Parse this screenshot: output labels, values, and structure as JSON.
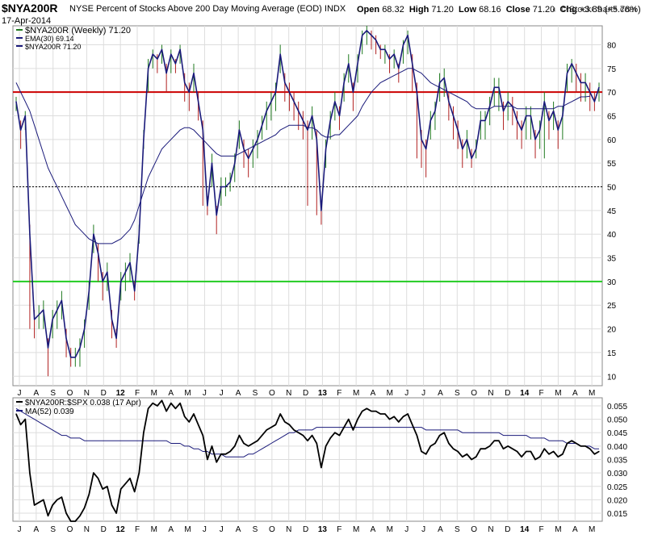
{
  "header": {
    "symbol": "$NYA200R",
    "description": "NYSE Percent of Stocks Above 200 Day Moving Average (EOD)",
    "exchange": "INDX",
    "date": "17-Apr-2014",
    "open_label": "Open",
    "open": "68.32",
    "high_label": "High",
    "high": "71.20",
    "low_label": "Low",
    "low": "68.16",
    "close_label": "Close",
    "close": "71.20",
    "chg_label": "Chg",
    "chg": "+3.89 (+5.78%)",
    "brand": "© StockCharts.com",
    "brand_icon": "chart-logo-icon"
  },
  "colors": {
    "price_line": "#1a1a7a",
    "ema_line": "#1a1a7a",
    "bar_up": "#1f7a1f",
    "bar_down": "#b02020",
    "resistance_line": "#cc0000",
    "support_line": "#22cc22",
    "ratio_line": "#000000",
    "ratio_ma": "#1a1a7a",
    "grid": "#dddddd"
  },
  "chart_data": [
    {
      "type": "line",
      "legend": [
        "$NYA200R (Weekly) 71.20",
        "EMA(30) 69.14",
        "$NYA200R 71.20"
      ],
      "xlabels": [
        "J",
        "A",
        "S",
        "O",
        "N",
        "D",
        "12",
        "F",
        "M",
        "A",
        "M",
        "J",
        "J",
        "A",
        "S",
        "O",
        "N",
        "D",
        "13",
        "F",
        "M",
        "A",
        "M",
        "J",
        "J",
        "A",
        "S",
        "O",
        "N",
        "D",
        "14",
        "F",
        "M",
        "A",
        "M"
      ],
      "ylim": [
        8,
        84
      ],
      "yticks": [
        10,
        15,
        20,
        25,
        30,
        35,
        40,
        45,
        50,
        55,
        60,
        65,
        70,
        75,
        80
      ],
      "grid": true,
      "reference_lines": [
        {
          "value": 70,
          "style": "solid",
          "color": "#cc0000"
        },
        {
          "value": 50,
          "style": "dotted",
          "color": "#000000"
        },
        {
          "value": 30,
          "style": "solid",
          "color": "#22cc22"
        }
      ],
      "series": [
        {
          "name": "$NYA200R",
          "values": [
            68,
            62,
            65,
            40,
            22,
            23,
            24,
            16,
            22,
            24,
            26,
            18,
            14,
            14,
            16,
            20,
            28,
            40,
            36,
            30,
            32,
            22,
            18,
            30,
            32,
            34,
            28,
            40,
            60,
            75,
            78,
            77,
            79,
            74,
            78,
            76,
            79,
            72,
            70,
            74,
            68,
            62,
            46,
            55,
            44,
            50,
            50,
            51,
            55,
            62,
            58,
            56,
            58,
            60,
            63,
            66,
            68,
            70,
            78,
            72,
            70,
            68,
            66,
            64,
            62,
            65,
            60,
            45,
            58,
            64,
            68,
            65,
            72,
            76,
            70,
            76,
            82,
            83,
            82,
            81,
            79,
            79,
            77,
            78,
            75,
            80,
            82,
            76,
            70,
            60,
            58,
            64,
            66,
            72,
            73,
            68,
            65,
            62,
            58,
            60,
            56,
            58,
            64,
            64,
            67,
            71,
            71,
            66,
            68,
            67,
            64,
            62,
            65,
            65,
            60,
            62,
            68,
            64,
            66,
            62,
            65,
            74,
            76,
            74,
            72,
            72,
            70,
            68,
            71
          ],
          "high": [
            69,
            64,
            66,
            42,
            24,
            25,
            26,
            18,
            24,
            26,
            28,
            20,
            16,
            16,
            18,
            22,
            30,
            42,
            38,
            32,
            34,
            24,
            20,
            32,
            34,
            36,
            30,
            42,
            62,
            77,
            79,
            78,
            80,
            76,
            79,
            77,
            80,
            74,
            72,
            76,
            70,
            64,
            48,
            57,
            46,
            52,
            52,
            53,
            57,
            64,
            60,
            58,
            60,
            62,
            65,
            68,
            70,
            72,
            80,
            74,
            72,
            70,
            68,
            66,
            64,
            67,
            62,
            47,
            60,
            66,
            70,
            67,
            74,
            78,
            72,
            78,
            83,
            84,
            83,
            82,
            80,
            80,
            78,
            79,
            76,
            81,
            83,
            78,
            72,
            62,
            60,
            66,
            68,
            74,
            75,
            70,
            67,
            64,
            60,
            62,
            58,
            60,
            66,
            66,
            69,
            73,
            73,
            68,
            70,
            69,
            66,
            64,
            67,
            67,
            62,
            64,
            70,
            66,
            68,
            64,
            67,
            76,
            77,
            76,
            74,
            74,
            72,
            70,
            72
          ],
          "low": [
            66,
            58,
            62,
            20,
            18,
            20,
            20,
            10,
            18,
            20,
            22,
            14,
            12,
            12,
            12,
            16,
            24,
            36,
            30,
            26,
            28,
            18,
            16,
            26,
            28,
            30,
            26,
            38,
            58,
            70,
            75,
            74,
            76,
            70,
            74,
            74,
            76,
            68,
            66,
            70,
            64,
            46,
            44,
            50,
            40,
            46,
            48,
            49,
            51,
            58,
            54,
            52,
            54,
            56,
            60,
            62,
            64,
            66,
            74,
            68,
            66,
            64,
            62,
            60,
            46,
            60,
            44,
            42,
            54,
            60,
            64,
            62,
            68,
            72,
            66,
            72,
            78,
            80,
            79,
            78,
            77,
            76,
            74,
            75,
            72,
            76,
            78,
            70,
            56,
            54,
            52,
            60,
            62,
            68,
            69,
            64,
            60,
            58,
            54,
            56,
            54,
            56,
            60,
            60,
            63,
            67,
            66,
            62,
            64,
            63,
            60,
            58,
            60,
            60,
            56,
            58,
            56,
            60,
            62,
            58,
            60,
            70,
            72,
            70,
            68,
            68,
            66,
            66,
            68
          ]
        },
        {
          "name": "EMA(30)",
          "values": [
            72,
            70,
            68,
            66,
            63,
            60,
            57,
            54,
            52,
            50,
            48,
            46,
            44,
            42,
            41,
            40,
            39,
            38.5,
            38,
            38,
            38,
            38,
            38.5,
            39,
            40,
            41,
            43,
            46,
            49,
            52,
            54,
            56,
            58,
            59,
            60,
            61,
            62,
            62.5,
            62.5,
            62,
            61,
            60,
            59,
            58,
            57,
            56.5,
            56.5,
            56.5,
            56.5,
            57,
            57.5,
            58,
            58.5,
            59,
            59.5,
            60,
            60.5,
            61,
            62,
            62.5,
            63,
            63,
            63,
            63,
            62.5,
            62.5,
            62,
            61,
            60.5,
            60.5,
            61,
            61,
            62,
            63,
            64,
            65,
            67,
            68.5,
            70,
            71,
            72,
            72.5,
            73,
            73.5,
            74,
            74.5,
            75,
            75,
            74.5,
            74,
            73,
            72,
            71.5,
            71,
            70.5,
            70,
            69.5,
            69,
            68.5,
            68,
            67,
            66.5,
            66.5,
            66.5,
            66.5,
            67,
            67,
            67,
            67,
            67,
            66.5,
            66.5,
            66.5,
            66.5,
            66.5,
            66.5,
            66.5,
            66.5,
            66.5,
            67,
            67,
            67.5,
            68,
            68.5,
            69,
            69,
            69.14
          ]
        }
      ]
    },
    {
      "type": "line",
      "legend": [
        "$NYA200R:$SPX 0.038 (17 Apr)",
        "MA(52) 0.039"
      ],
      "ylim": [
        0.012,
        0.058
      ],
      "yticks": [
        0.015,
        0.02,
        0.025,
        0.03,
        0.035,
        0.04,
        0.045,
        0.05,
        0.055
      ],
      "grid": true,
      "series": [
        {
          "name": "$NYA200R:$SPX",
          "values": [
            0.052,
            0.048,
            0.05,
            0.03,
            0.018,
            0.019,
            0.02,
            0.014,
            0.018,
            0.02,
            0.021,
            0.015,
            0.012,
            0.012,
            0.014,
            0.017,
            0.022,
            0.03,
            0.028,
            0.024,
            0.025,
            0.018,
            0.015,
            0.024,
            0.026,
            0.028,
            0.023,
            0.03,
            0.045,
            0.054,
            0.056,
            0.055,
            0.057,
            0.053,
            0.056,
            0.054,
            0.056,
            0.051,
            0.049,
            0.052,
            0.048,
            0.044,
            0.035,
            0.04,
            0.034,
            0.037,
            0.037,
            0.038,
            0.04,
            0.044,
            0.041,
            0.04,
            0.041,
            0.042,
            0.044,
            0.046,
            0.047,
            0.048,
            0.052,
            0.049,
            0.048,
            0.046,
            0.045,
            0.044,
            0.042,
            0.044,
            0.041,
            0.032,
            0.04,
            0.043,
            0.045,
            0.044,
            0.047,
            0.05,
            0.046,
            0.05,
            0.053,
            0.054,
            0.053,
            0.053,
            0.052,
            0.052,
            0.05,
            0.051,
            0.049,
            0.051,
            0.052,
            0.048,
            0.044,
            0.038,
            0.037,
            0.04,
            0.041,
            0.044,
            0.045,
            0.041,
            0.039,
            0.038,
            0.036,
            0.037,
            0.035,
            0.036,
            0.039,
            0.039,
            0.04,
            0.042,
            0.042,
            0.039,
            0.04,
            0.039,
            0.038,
            0.036,
            0.038,
            0.038,
            0.035,
            0.036,
            0.039,
            0.037,
            0.038,
            0.036,
            0.037,
            0.041,
            0.042,
            0.041,
            0.04,
            0.04,
            0.039,
            0.037,
            0.038
          ]
        },
        {
          "name": "MA(52)",
          "values": [
            0.054,
            0.053,
            0.052,
            0.051,
            0.05,
            0.049,
            0.048,
            0.047,
            0.046,
            0.045,
            0.044,
            0.044,
            0.043,
            0.043,
            0.043,
            0.042,
            0.042,
            0.042,
            0.042,
            0.042,
            0.042,
            0.042,
            0.042,
            0.042,
            0.042,
            0.042,
            0.042,
            0.042,
            0.042,
            0.042,
            0.042,
            0.042,
            0.042,
            0.042,
            0.041,
            0.041,
            0.041,
            0.04,
            0.04,
            0.039,
            0.039,
            0.038,
            0.038,
            0.037,
            0.037,
            0.037,
            0.036,
            0.036,
            0.036,
            0.036,
            0.036,
            0.037,
            0.037,
            0.038,
            0.039,
            0.04,
            0.041,
            0.042,
            0.043,
            0.044,
            0.045,
            0.045,
            0.046,
            0.046,
            0.046,
            0.046,
            0.047,
            0.047,
            0.047,
            0.047,
            0.047,
            0.047,
            0.047,
            0.047,
            0.047,
            0.047,
            0.047,
            0.047,
            0.047,
            0.047,
            0.047,
            0.047,
            0.047,
            0.047,
            0.047,
            0.047,
            0.047,
            0.047,
            0.047,
            0.047,
            0.046,
            0.046,
            0.046,
            0.046,
            0.046,
            0.046,
            0.046,
            0.046,
            0.045,
            0.045,
            0.045,
            0.045,
            0.045,
            0.045,
            0.045,
            0.045,
            0.045,
            0.044,
            0.044,
            0.044,
            0.044,
            0.044,
            0.044,
            0.043,
            0.043,
            0.043,
            0.043,
            0.042,
            0.042,
            0.042,
            0.042,
            0.041,
            0.041,
            0.041,
            0.04,
            0.04,
            0.04,
            0.039,
            0.039
          ]
        }
      ]
    }
  ]
}
